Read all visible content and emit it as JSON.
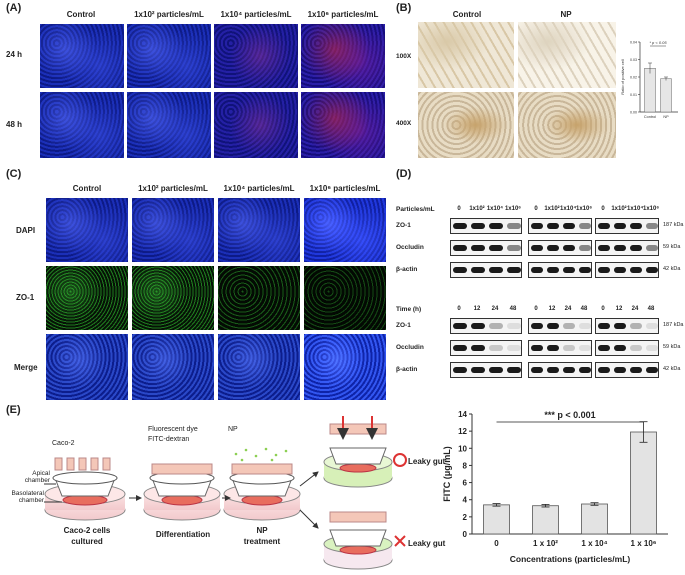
{
  "panels": {
    "A": {
      "label": "(A)",
      "headers": [
        "Control",
        "1x10² particles/mL",
        "1x10⁴ particles/mL",
        "1x10⁶ particles/mL"
      ],
      "rows": [
        "24 h",
        "48 h"
      ]
    },
    "B": {
      "label": "(B)",
      "headers": [
        "Control",
        "NP"
      ],
      "rows": [
        "100X",
        "400X"
      ]
    },
    "C": {
      "label": "(C)",
      "headers": [
        "Control",
        "1x10² particles/mL",
        "1x10⁴ particles/mL",
        "1x10⁶ particles/mL"
      ],
      "rows": [
        "DAPI",
        "ZO-1",
        "Merge"
      ]
    },
    "D": {
      "label": "(D)",
      "top_axis_label": "Particles/mL",
      "top_lanes": [
        "0",
        "1x10²",
        "1x10⁴",
        "1x10⁶"
      ],
      "bottom_axis_label": "Time (h)",
      "bottom_lanes": [
        "0",
        "12",
        "24",
        "48"
      ],
      "proteins": [
        "ZO-1",
        "Occludin",
        "β-actin"
      ],
      "kda": [
        "187 kDa",
        "59 kDa",
        "42 kDa"
      ]
    },
    "E": {
      "label": "(E)",
      "diagram": {
        "caco2": "Caco-2",
        "apical": "Apical chamber",
        "basolateral": "Basolateral chamber",
        "fitc_line1": "Fluorescent dye",
        "fitc_line2": "FITC-dextran",
        "np": "NP",
        "step1_line1": "Caco-2 cells",
        "step1_line2": "cultured",
        "step2": "Differentiation",
        "step3_line1": "NP",
        "step3_line2": "treatment",
        "outcome_yes": "Leaky gut",
        "outcome_no": "Leaky gut"
      }
    }
  },
  "chart_data": [
    {
      "type": "bar",
      "panel": "B",
      "categories": [
        "Control",
        "NP"
      ],
      "values": [
        0.025,
        0.019
      ],
      "errors": [
        0.003,
        0.001
      ],
      "ylabel": "Ratio of positive cell",
      "ylim": [
        0,
        0.04
      ],
      "yticks": [
        "0.00",
        "0.01",
        "0.02",
        "0.03",
        "0.04"
      ],
      "annotation": "* p < 0.05"
    },
    {
      "type": "bar",
      "panel": "E",
      "categories": [
        "0",
        "1 x 10²",
        "1 x 10⁴",
        "1 x 10⁶"
      ],
      "values": [
        3.4,
        3.3,
        3.5,
        11.9
      ],
      "errors": [
        0.15,
        0.15,
        0.15,
        1.2
      ],
      "xlabel": "Concentrations (particles/mL)",
      "ylabel": "FITC (μg/mL)",
      "ylim": [
        0,
        14
      ],
      "yticks": [
        "0",
        "2",
        "4",
        "6",
        "8",
        "10",
        "12",
        "14"
      ],
      "annotation": "*** p < 0.001"
    }
  ]
}
